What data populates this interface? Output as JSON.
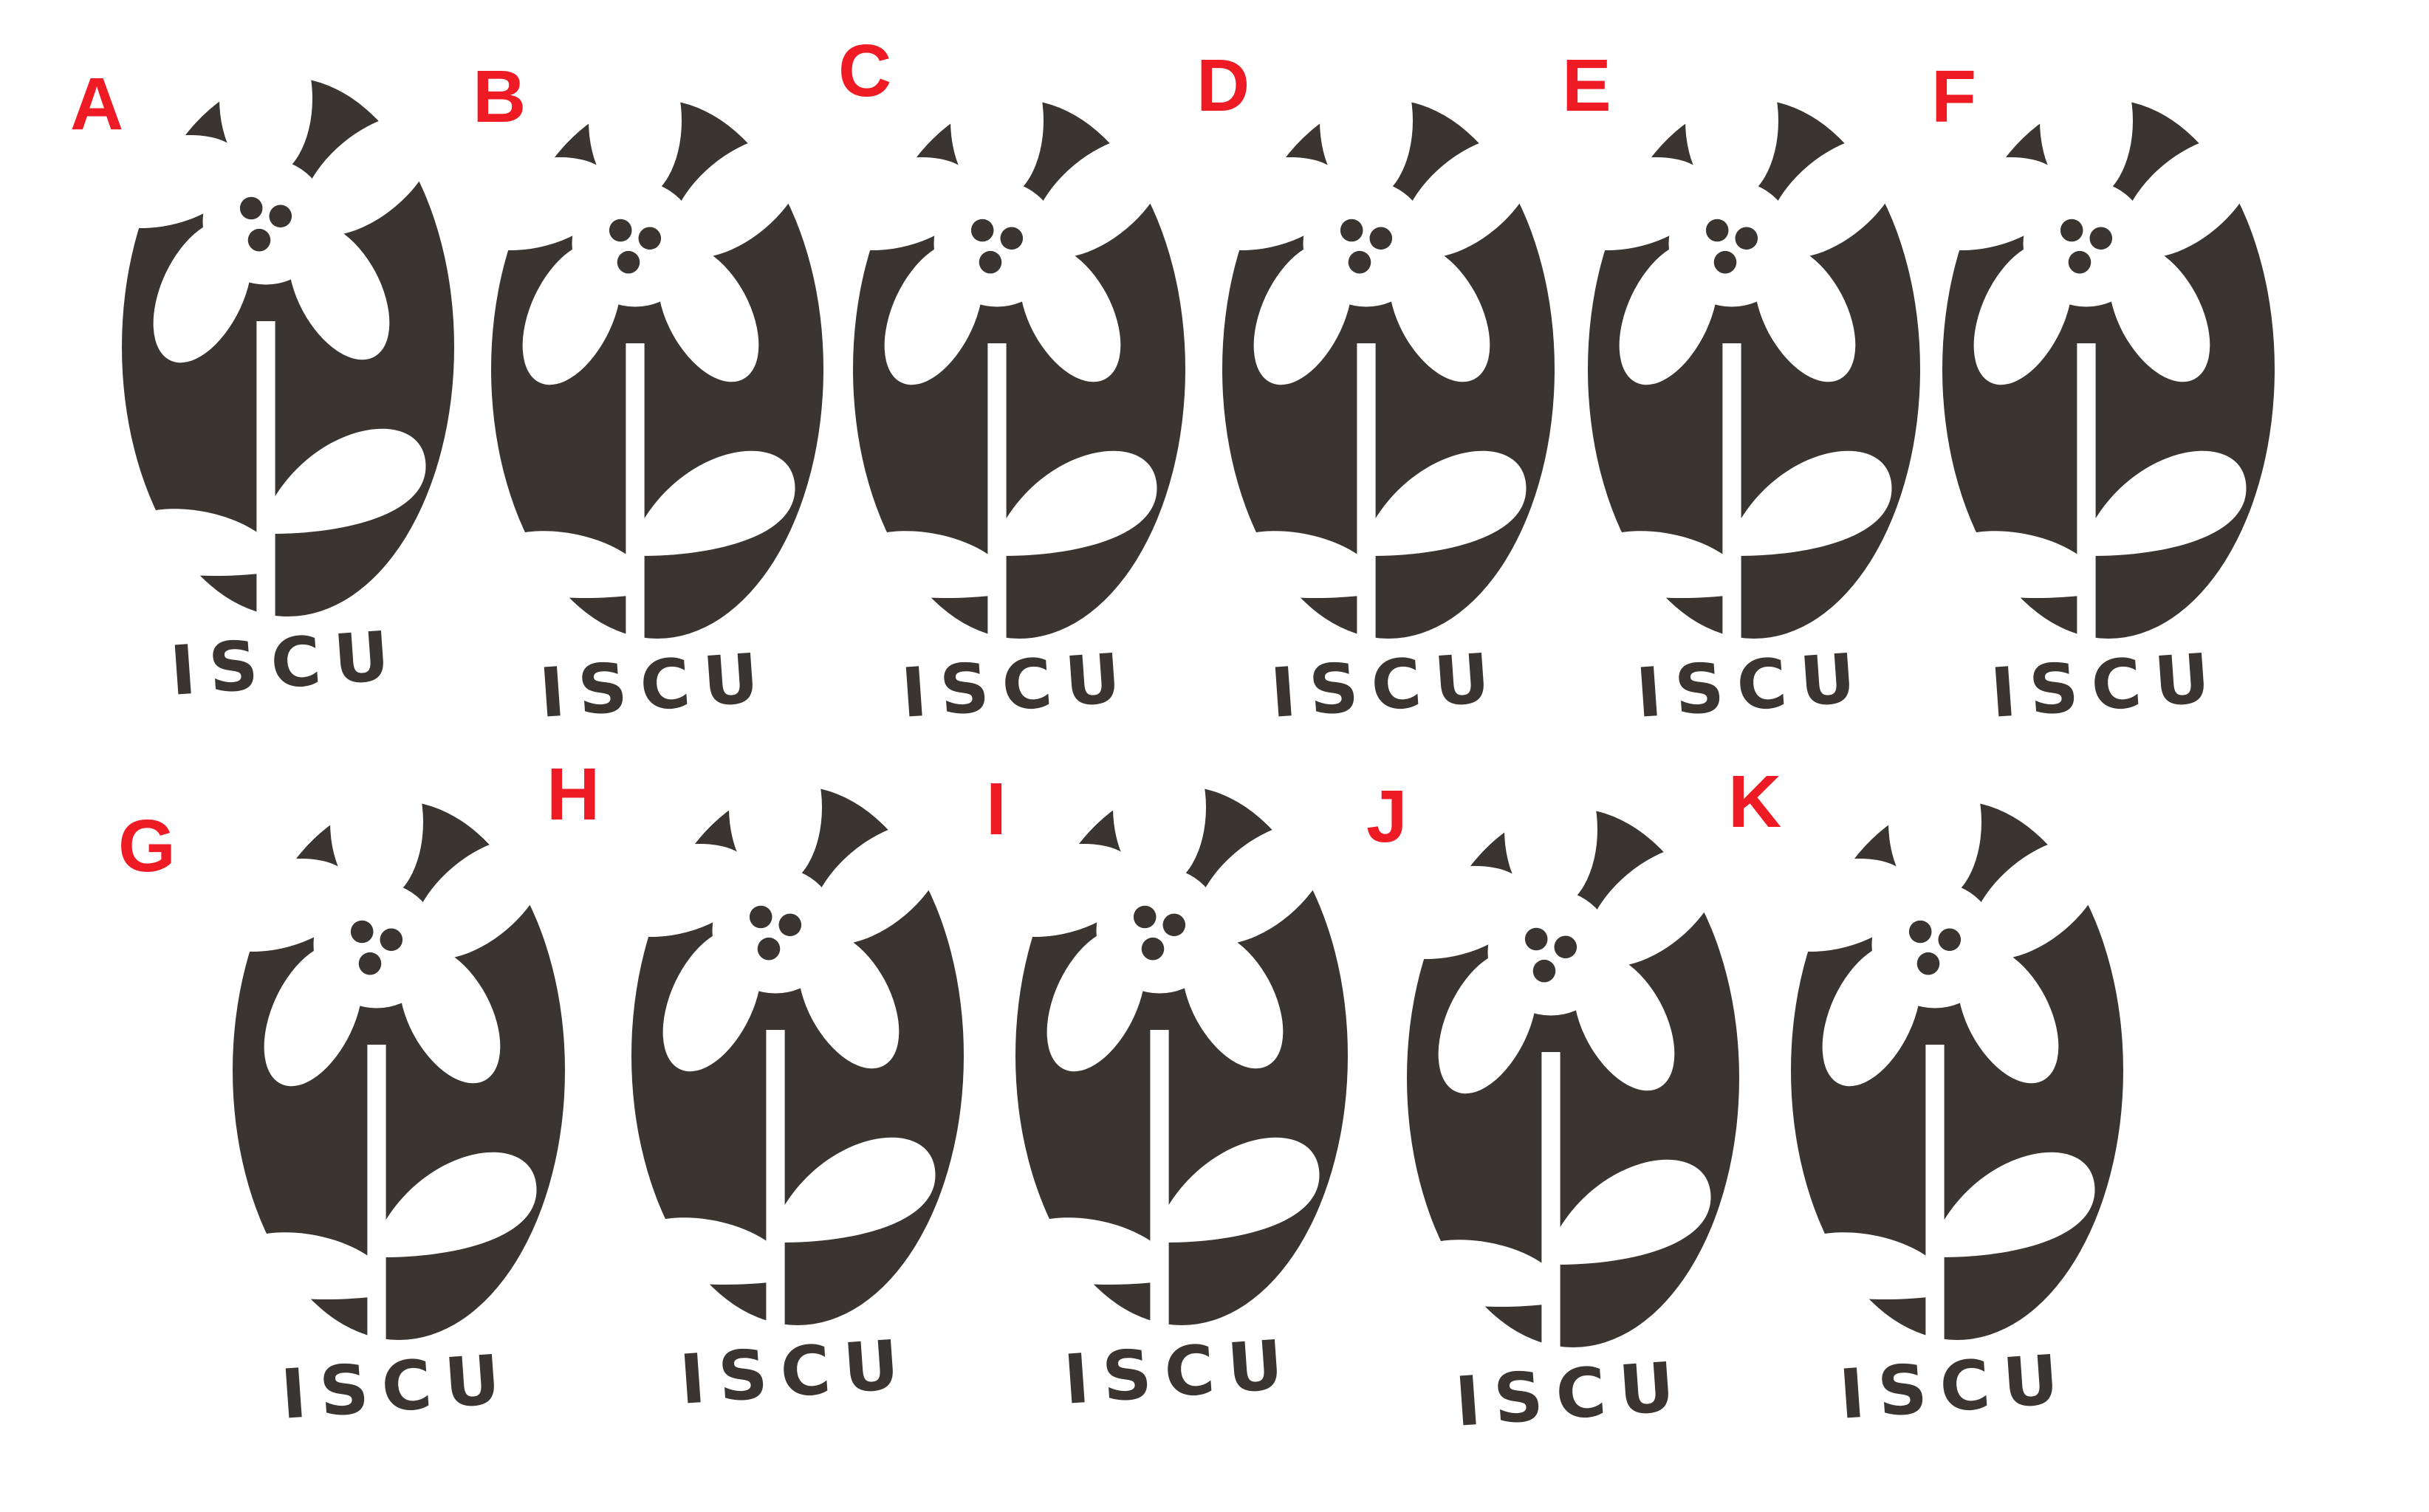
{
  "colors": {
    "background": "#ffffff",
    "stencil_fill": "#3a3530",
    "cutout": "#ffffff",
    "letter": "#ef1b24"
  },
  "brand_text": "ISCU",
  "variants": [
    {
      "letter": "A"
    },
    {
      "letter": "B"
    },
    {
      "letter": "C"
    },
    {
      "letter": "D"
    },
    {
      "letter": "E"
    },
    {
      "letter": "F"
    },
    {
      "letter": "G"
    },
    {
      "letter": "H"
    },
    {
      "letter": "I"
    },
    {
      "letter": "J"
    },
    {
      "letter": "K"
    }
  ]
}
